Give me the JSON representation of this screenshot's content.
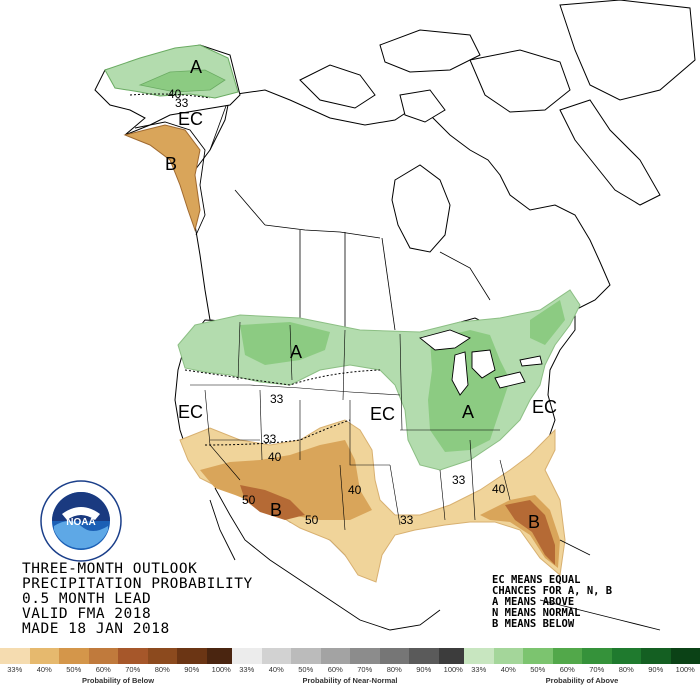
{
  "map": {
    "labels": {
      "alaska_A": "A",
      "alaska_EC": "EC",
      "alaska_B": "B",
      "north_A": "A",
      "west_EC": "EC",
      "central_EC": "EC",
      "ohio_A": "A",
      "east_EC": "EC",
      "southwest_B": "B",
      "florida_B": "B"
    },
    "contours": {
      "ak_40": "40",
      "ak_33": "33",
      "nw_33": "33",
      "sw_33": "33",
      "sw_40": "40",
      "sw_50a": "50",
      "sw_50b": "50",
      "tx_40": "40",
      "gulf_33": "33",
      "se_33": "33",
      "se_40": "40"
    },
    "colors": {
      "above_33": "#b3dcae",
      "above_40": "#8ccb82",
      "below_33": "#f0d49a",
      "below_40": "#d9a55a",
      "below_50": "#b56a35"
    }
  },
  "logo": {
    "name": "NOAA",
    "ring": "NATIONAL OCEANIC AND ATMOSPHERIC ADMINISTRATION · U.S. DEPARTMENT OF COMMERCE"
  },
  "title": {
    "line1": "THREE-MONTH OUTLOOK",
    "line2": "PRECIPITATION PROBABILITY",
    "line3": "0.5 MONTH LEAD",
    "line4": "VALID FMA 2018",
    "line5": "MADE 18 JAN 2018"
  },
  "key": {
    "line1": "EC MEANS EQUAL",
    "line2": "CHANCES FOR A, N, B",
    "line3": "A MEANS ABOVE",
    "line4": "N MEANS NORMAL",
    "line5": "B MEANS BELOW"
  },
  "legends": [
    {
      "caption": "Probability of Below",
      "ticks": [
        "33%",
        "40%",
        "50%",
        "60%",
        "70%",
        "80%",
        "90%",
        "100%"
      ],
      "colors": [
        "#f5dcb0",
        "#e6b96e",
        "#d4964a",
        "#c07a3c",
        "#a6572a",
        "#8c4a1e",
        "#6b3514",
        "#4a2510"
      ]
    },
    {
      "caption": "Probability of Near-Normal",
      "ticks": [
        "33%",
        "40%",
        "50%",
        "60%",
        "70%",
        "80%",
        "90%",
        "100%"
      ],
      "colors": [
        "#ececec",
        "#d2d2d2",
        "#bbbbbb",
        "#a3a3a3",
        "#8c8c8c",
        "#767676",
        "#5a5a5a",
        "#3c3c3c"
      ]
    },
    {
      "caption": "Probability of Above",
      "ticks": [
        "33%",
        "40%",
        "50%",
        "60%",
        "70%",
        "80%",
        "90%",
        "100%"
      ],
      "colors": [
        "#c8e6c0",
        "#a4d69a",
        "#7cc46f",
        "#52a84a",
        "#35923a",
        "#1f7a2e",
        "#145f22",
        "#0b4216"
      ]
    }
  ]
}
